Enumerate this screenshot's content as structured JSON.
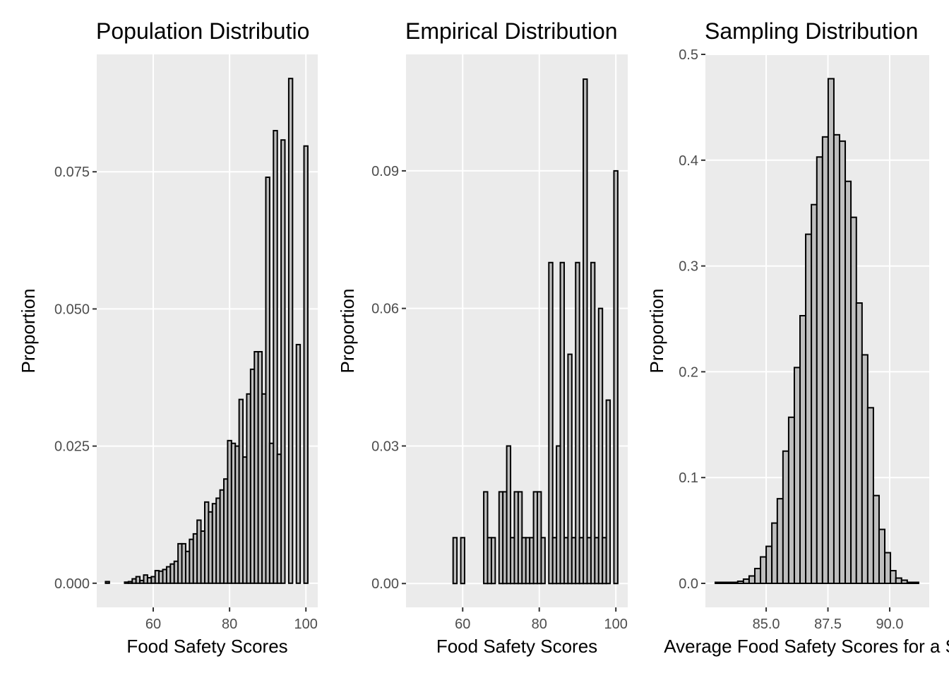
{
  "chart_data": [
    {
      "type": "histogram",
      "title": "Population Distributio",
      "x_label": "Food Safety Scores",
      "y_label": "Proportion",
      "bins": [
        47.5,
        48.5,
        49.5,
        50.5,
        51.5,
        52.5,
        53.5,
        54.5,
        55.5,
        56.5,
        57.5,
        58.5,
        59.5,
        60.5,
        61.5,
        62.5,
        63.5,
        64.5,
        65.5,
        66.5,
        67.5,
        68.5,
        69.5,
        70.5,
        71.5,
        72.5,
        73.5,
        74.5,
        75.5,
        76.5,
        77.5,
        78.5,
        79.5,
        80.5,
        81.5,
        82.5,
        83.5,
        84.5,
        85.5,
        86.5,
        87.5,
        88.5,
        89.5,
        90.5,
        91.5,
        92.5,
        93.5,
        94.5,
        95.5,
        96.5,
        97.5,
        98.5,
        99.5,
        100.5
      ],
      "values": [
        0.0003,
        0,
        0,
        0,
        0,
        0.0002,
        0.0003,
        0.0008,
        0.0012,
        0.0005,
        0.0015,
        0.001,
        0.0012,
        0.0023,
        0.0022,
        0.0025,
        0.003,
        0.0035,
        0.004,
        0.0072,
        0.0072,
        0.0058,
        0.008,
        0.009,
        0.0115,
        0.0095,
        0.0148,
        0.013,
        0.0145,
        0.0155,
        0.017,
        0.019,
        0.026,
        0.0255,
        0.025,
        0.0335,
        0.023,
        0.0345,
        0.039,
        0.0422,
        0.0422,
        0.0345,
        0.074,
        0.0255,
        0.0825,
        0.0235,
        0.0808,
        0,
        0.092,
        0,
        0.0435,
        0,
        0.0797
      ],
      "xlim": [
        45.2,
        103.1
      ],
      "ylim": [
        -0.0044,
        0.0964
      ],
      "xticks": [
        60,
        80,
        100
      ],
      "yticks": [
        {
          "value": 0,
          "label": "0.000"
        },
        0.025,
        {
          "value": 0.05,
          "label": "0.050"
        },
        0.075
      ],
      "color": "#bebebe",
      "edgecolor": "#000000",
      "grid": true
    },
    {
      "type": "histogram",
      "title": "Empirical Distribution",
      "x_label": "Food Safety Scores",
      "y_label": "Proportion",
      "bins": [
        47.5,
        48.5,
        49.5,
        50.5,
        51.5,
        52.5,
        53.5,
        54.5,
        55.5,
        56.5,
        57.5,
        58.5,
        59.5,
        60.5,
        61.5,
        62.5,
        63.5,
        64.5,
        65.5,
        66.5,
        67.5,
        68.5,
        69.5,
        70.5,
        71.5,
        72.5,
        73.5,
        74.5,
        75.5,
        76.5,
        77.5,
        78.5,
        79.5,
        80.5,
        81.5,
        82.5,
        83.5,
        84.5,
        85.5,
        86.5,
        87.5,
        88.5,
        89.5,
        90.5,
        91.5,
        92.5,
        93.5,
        94.5,
        95.5,
        96.5,
        97.5,
        98.5,
        99.5,
        100.5
      ],
      "values": [
        0,
        0,
        0,
        0,
        0,
        0,
        0,
        0,
        0,
        0,
        0.01,
        0,
        0.01,
        0,
        0,
        0,
        0,
        0,
        0.02,
        0.01,
        0.01,
        0,
        0.02,
        0.02,
        0.03,
        0.01,
        0.02,
        0.02,
        0.01,
        0.01,
        0.01,
        0.02,
        0.02,
        0.01,
        0,
        0.07,
        0.01,
        0.03,
        0.07,
        0.01,
        0.05,
        0.01,
        0.07,
        0.01,
        0.11,
        0.01,
        0.07,
        0.01,
        0.06,
        0.01,
        0.04,
        0,
        0.09
      ],
      "xlim": [
        45.2,
        103.1
      ],
      "ylim": [
        -0.0052,
        0.1154
      ],
      "xticks": [
        60,
        80,
        100
      ],
      "yticks": [
        {
          "value": 0,
          "label": "0.00"
        },
        0.03,
        0.06,
        0.09
      ],
      "color": "#bebebe",
      "edgecolor": "#000000",
      "grid": true
    },
    {
      "type": "histogram",
      "title": "Sampling Distribution",
      "x_label": "Average Food Safety Scores for a SR",
      "y_label": "Proportion",
      "bins": [
        82.94,
        83.17,
        83.4,
        83.63,
        83.85,
        84.08,
        84.31,
        84.54,
        84.77,
        85.0,
        85.23,
        85.45,
        85.68,
        85.91,
        86.14,
        86.37,
        86.6,
        86.83,
        87.05,
        87.28,
        87.51,
        87.74,
        87.97,
        88.2,
        88.43,
        88.65,
        88.88,
        89.11,
        89.34,
        89.57,
        89.8,
        90.03,
        90.25,
        90.48,
        90.71,
        90.94,
        91.17
      ],
      "values": [
        0.001,
        0.001,
        0.001,
        0.001,
        0.002,
        0.004,
        0.007,
        0.014,
        0.025,
        0.035,
        0.057,
        0.08,
        0.125,
        0.157,
        0.204,
        0.253,
        0.33,
        0.358,
        0.403,
        0.422,
        0.477,
        0.424,
        0.418,
        0.38,
        0.346,
        0.265,
        0.216,
        0.166,
        0.083,
        0.051,
        0.029,
        0.012,
        0.005,
        0.003,
        0.001,
        0.001
      ],
      "xlim": [
        82.54,
        91.6
      ],
      "ylim": [
        -0.0227,
        0.5
      ],
      "xticks": [
        {
          "value": 85,
          "label": "85.0"
        },
        87.5,
        {
          "value": 90,
          "label": "90.0"
        }
      ],
      "yticks": [
        {
          "value": 0,
          "label": "0.0"
        },
        0.1,
        0.2,
        0.3,
        0.4,
        0.5
      ],
      "color": "#bebebe",
      "edgecolor": "#000000",
      "grid": true
    }
  ]
}
